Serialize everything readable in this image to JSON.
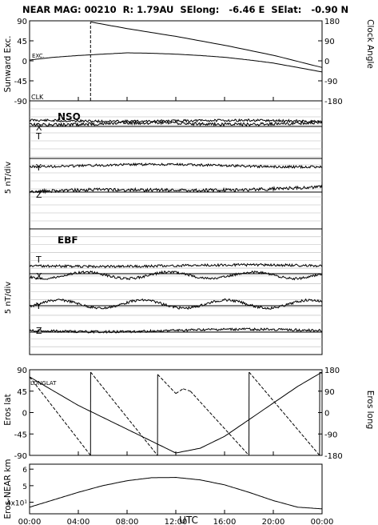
{
  "header": {
    "title": "NEAR MAG: 00210  R: 1.79AU  SElong:   -6.46 E  SElat:   -0.90 N"
  },
  "chart_data": [
    {
      "type": "line",
      "panel": "sunward",
      "ylabel_left": "Sunward Exc.",
      "ylabel_right": "Clock Angle",
      "ylim": [
        -90,
        90
      ],
      "ylim_right": [
        -180,
        180
      ],
      "yticks_left": [
        "90",
        "45",
        "0",
        "-45",
        "-90"
      ],
      "yticks_right": [
        "180",
        "90",
        "0",
        "-90",
        "-180"
      ],
      "annotations": [
        "EXC.",
        "CLK"
      ],
      "series": [
        {
          "name": "EXC.",
          "x": [
            0,
            2,
            4,
            6,
            8,
            10,
            12,
            14,
            16,
            18,
            20,
            22,
            24
          ],
          "y": [
            2,
            8,
            12,
            15,
            18,
            17,
            15,
            12,
            8,
            2,
            -5,
            -15,
            -25
          ]
        },
        {
          "name": "CLK",
          "x": [
            0,
            5,
            5.01,
            8,
            12,
            16,
            20,
            24
          ],
          "y": [
            -180,
            -180,
            175,
            145,
            110,
            70,
            25,
            -30
          ]
        }
      ]
    },
    {
      "type": "line",
      "panel": "NSO",
      "panel_label": "NSO",
      "ylabel": "5 nT/div",
      "components": [
        "T",
        "X",
        "Y",
        "Z"
      ]
    },
    {
      "type": "line",
      "panel": "EBF",
      "panel_label": "EBF",
      "ylabel": "5 nT/div",
      "components": [
        "T",
        "X",
        "Y",
        "Z"
      ]
    },
    {
      "type": "line",
      "panel": "eros",
      "ylabel_left": "Eros lat",
      "ylabel_right": "Eros long",
      "annotation": "LONGLAT",
      "ylim": [
        -90,
        90
      ],
      "ylim_right": [
        -180,
        180
      ],
      "yticks_left": [
        "90",
        "45",
        "0",
        "-45",
        "-90"
      ],
      "yticks_right": [
        "180",
        "90",
        "0",
        "-90",
        "-180"
      ],
      "series": [
        {
          "name": "lat",
          "x": [
            0,
            2,
            4,
            6,
            8,
            10,
            12,
            14,
            16,
            18,
            20,
            22,
            24
          ],
          "y": [
            75,
            45,
            15,
            -10,
            -35,
            -60,
            -85,
            -75,
            -50,
            -15,
            20,
            55,
            85
          ]
        },
        {
          "name": "long",
          "x": [
            0,
            5,
            5.01,
            10.5,
            10.51,
            12,
            12.6,
            13.2,
            18,
            18.01,
            23.8,
            23.81,
            24
          ],
          "y": [
            150,
            -180,
            170,
            -180,
            160,
            80,
            100,
            90,
            -180,
            170,
            -180,
            170,
            165
          ]
        }
      ]
    },
    {
      "type": "line",
      "panel": "distance",
      "ylabel": "Eros-NEAR km",
      "yticks": [
        "6",
        "5",
        "4x10¹"
      ],
      "xlabel": "UTC",
      "xticks": [
        "00:00",
        "04:00",
        "08:00",
        "12:00",
        "16:00",
        "20:00",
        "00:00"
      ],
      "series": [
        {
          "name": "distance",
          "x": [
            0,
            2,
            4,
            6,
            8,
            10,
            12,
            14,
            16,
            18,
            20,
            22,
            24
          ],
          "y": [
            3.7,
            4.15,
            4.6,
            5.0,
            5.3,
            5.48,
            5.5,
            5.35,
            5.05,
            4.6,
            4.1,
            3.7,
            3.6
          ]
        }
      ]
    }
  ]
}
